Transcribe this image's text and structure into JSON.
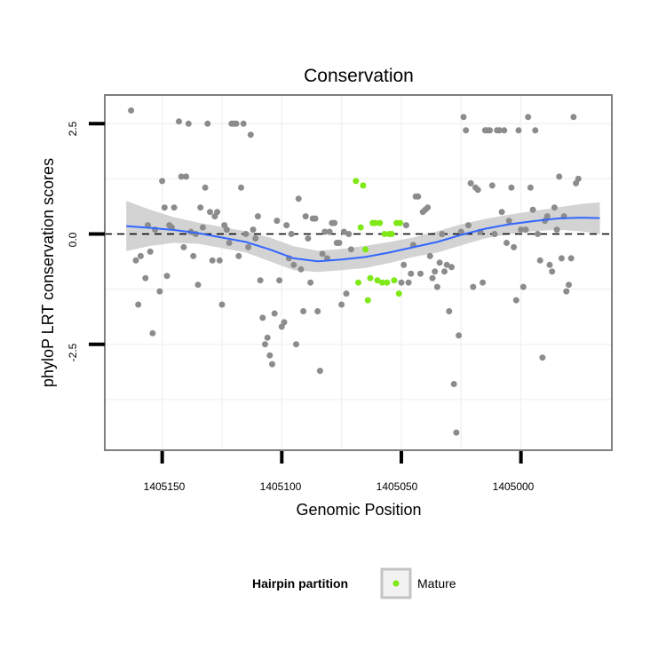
{
  "chart_data": {
    "type": "scatter",
    "title": "Conservation",
    "xlabel": "Genomic Position",
    "ylabel": "phyloP LRT conservation scores",
    "x_reversed": true,
    "xlim": [
      1405174,
      1404962
    ],
    "ylim": [
      -4.9,
      3.15
    ],
    "x_ticks": [
      1405150,
      1405100,
      1405050,
      1405000
    ],
    "x_tick_labels": [
      "1405150",
      "1405100",
      "1405050",
      "1405000"
    ],
    "y_ticks": [
      2.5,
      0.0,
      -2.5
    ],
    "y_tick_labels": [
      "2.5",
      "0.0",
      "-2.5"
    ],
    "hline": {
      "y": 0,
      "style": "dashed"
    },
    "legend": {
      "title": "Hairpin partition",
      "entries": [
        {
          "label": "Mature",
          "color": "#7fe817"
        }
      ],
      "position": "bottom"
    },
    "colors": {
      "other": "#8c8c8c",
      "mature": "#7fe817",
      "smooth": "#3366ff",
      "ribbon": "#c8c8c8"
    },
    "smooth": {
      "x": [
        1405165,
        1405155,
        1405145,
        1405135,
        1405125,
        1405115,
        1405105,
        1405095,
        1405085,
        1405075,
        1405065,
        1405055,
        1405045,
        1405035,
        1405025,
        1405015,
        1405005,
        1404995,
        1404985,
        1404975,
        1404967
      ],
      "y": [
        0.18,
        0.14,
        0.09,
        0.02,
        -0.08,
        -0.18,
        -0.35,
        -0.55,
        -0.62,
        -0.58,
        -0.52,
        -0.42,
        -0.3,
        -0.18,
        -0.02,
        0.12,
        0.22,
        0.29,
        0.35,
        0.37,
        0.36
      ],
      "upper": [
        0.75,
        0.55,
        0.38,
        0.26,
        0.16,
        0.06,
        -0.08,
        -0.28,
        -0.38,
        -0.34,
        -0.27,
        -0.18,
        -0.08,
        0.06,
        0.22,
        0.34,
        0.44,
        0.52,
        0.6,
        0.68,
        0.72
      ],
      "lower": [
        -0.39,
        -0.27,
        -0.2,
        -0.22,
        -0.32,
        -0.42,
        -0.62,
        -0.82,
        -0.86,
        -0.82,
        -0.77,
        -0.66,
        -0.52,
        -0.42,
        -0.26,
        -0.1,
        0.0,
        0.06,
        0.1,
        0.06,
        0.0
      ]
    },
    "series": [
      {
        "name": "Other",
        "points": [
          [
            1405163,
            2.8
          ],
          [
            1405161,
            -0.6
          ],
          [
            1405160,
            -1.6
          ],
          [
            1405159,
            -0.5
          ],
          [
            1405157,
            -1.0
          ],
          [
            1405156,
            0.2
          ],
          [
            1405155,
            -0.4
          ],
          [
            1405154,
            -2.25
          ],
          [
            1405153,
            0.1
          ],
          [
            1405151,
            -1.3
          ],
          [
            1405150,
            1.2
          ],
          [
            1405149,
            0.6
          ],
          [
            1405148,
            -0.95
          ],
          [
            1405147,
            0.2
          ],
          [
            1405146,
            0.15
          ],
          [
            1405145,
            0.6
          ],
          [
            1405143,
            2.55
          ],
          [
            1405142,
            1.3
          ],
          [
            1405141,
            -0.3
          ],
          [
            1405140,
            1.3
          ],
          [
            1405139,
            2.5
          ],
          [
            1405138,
            0.05
          ],
          [
            1405137,
            -0.5
          ],
          [
            1405136,
            0.0
          ],
          [
            1405135,
            -1.15
          ],
          [
            1405134,
            0.6
          ],
          [
            1405133,
            0.15
          ],
          [
            1405132,
            1.05
          ],
          [
            1405131,
            2.5
          ],
          [
            1405130,
            0.5
          ],
          [
            1405129,
            -0.6
          ],
          [
            1405128,
            0.4
          ],
          [
            1405127,
            0.5
          ],
          [
            1405126,
            -0.6
          ],
          [
            1405125,
            -1.6
          ],
          [
            1405124,
            0.2
          ],
          [
            1405123,
            0.1
          ],
          [
            1405122,
            -0.2
          ],
          [
            1405121,
            2.5
          ],
          [
            1405120,
            2.5
          ],
          [
            1405119,
            2.5
          ],
          [
            1405118,
            -0.5
          ],
          [
            1405117,
            1.05
          ],
          [
            1405116,
            2.5
          ],
          [
            1405115,
            0.0
          ],
          [
            1405114,
            -0.3
          ],
          [
            1405113,
            2.25
          ],
          [
            1405112,
            0.1
          ],
          [
            1405111,
            -0.1
          ],
          [
            1405110,
            0.4
          ],
          [
            1405109,
            -1.05
          ],
          [
            1405108,
            -1.9
          ],
          [
            1405107,
            -2.5
          ],
          [
            1405106,
            -2.35
          ],
          [
            1405105,
            -2.75
          ],
          [
            1405104,
            -2.95
          ],
          [
            1405103,
            -1.8
          ],
          [
            1405102,
            0.3
          ],
          [
            1405101,
            -1.05
          ],
          [
            1405100,
            -2.1
          ],
          [
            1405099,
            -2.0
          ],
          [
            1405098,
            0.2
          ],
          [
            1405097,
            -0.55
          ],
          [
            1405096,
            0.0
          ],
          [
            1405095,
            -0.7
          ],
          [
            1405094,
            -2.5
          ],
          [
            1405093,
            0.8
          ],
          [
            1405092,
            -0.8
          ],
          [
            1405091,
            -1.75
          ],
          [
            1405090,
            0.4
          ],
          [
            1405089,
            -0.1
          ],
          [
            1405088,
            -1.1
          ],
          [
            1405087,
            0.35
          ],
          [
            1405086,
            0.35
          ],
          [
            1405085,
            -1.75
          ],
          [
            1405084,
            -3.1
          ],
          [
            1405083,
            -0.45
          ],
          [
            1405082,
            0.05
          ],
          [
            1405081,
            -0.55
          ],
          [
            1405080,
            0.05
          ],
          [
            1405079,
            0.25
          ],
          [
            1405078,
            0.25
          ],
          [
            1405077,
            -0.2
          ],
          [
            1405076,
            -0.2
          ],
          [
            1405075,
            -1.6
          ],
          [
            1405074,
            0.05
          ],
          [
            1405073,
            -1.35
          ],
          [
            1405072,
            0.0
          ],
          [
            1405071,
            -0.35
          ],
          [
            1405050,
            -1.1
          ],
          [
            1405049,
            -0.7
          ],
          [
            1405048,
            0.2
          ],
          [
            1405047,
            -1.1
          ],
          [
            1405046,
            -0.9
          ],
          [
            1405045,
            -0.25
          ],
          [
            1405044,
            0.85
          ],
          [
            1405043,
            0.85
          ],
          [
            1405042,
            -0.9
          ],
          [
            1405041,
            0.5
          ],
          [
            1405040,
            0.55
          ],
          [
            1405039,
            0.6
          ],
          [
            1405038,
            -0.5
          ],
          [
            1405037,
            -1.0
          ],
          [
            1405036,
            -0.85
          ],
          [
            1405035,
            -1.2
          ],
          [
            1405034,
            -0.65
          ],
          [
            1405033,
            0.0
          ],
          [
            1405032,
            -0.85
          ],
          [
            1405031,
            -0.7
          ],
          [
            1405030,
            -1.75
          ],
          [
            1405029,
            -0.75
          ],
          [
            1405028,
            -3.4
          ],
          [
            1405027,
            -4.5
          ],
          [
            1405026,
            -2.3
          ],
          [
            1405025,
            0.05
          ],
          [
            1405024,
            2.65
          ],
          [
            1405023,
            2.35
          ],
          [
            1405022,
            0.2
          ],
          [
            1405021,
            1.15
          ],
          [
            1405020,
            -1.2
          ],
          [
            1405019,
            1.05
          ],
          [
            1405018,
            1.0
          ],
          [
            1405017,
            0.05
          ],
          [
            1405016,
            -1.1
          ],
          [
            1405015,
            2.35
          ],
          [
            1405014,
            2.35
          ],
          [
            1405013,
            2.35
          ],
          [
            1405012,
            1.1
          ],
          [
            1405011,
            0.0
          ],
          [
            1405010,
            2.35
          ],
          [
            1405009,
            2.35
          ],
          [
            1405008,
            0.5
          ],
          [
            1405007,
            2.35
          ],
          [
            1405006,
            -0.2
          ],
          [
            1405005,
            0.3
          ],
          [
            1405004,
            1.05
          ],
          [
            1405003,
            -0.3
          ],
          [
            1405002,
            -1.5
          ],
          [
            1405001,
            2.35
          ],
          [
            1405000,
            0.1
          ],
          [
            1404999,
            -1.2
          ],
          [
            1404998,
            0.1
          ],
          [
            1404997,
            2.65
          ],
          [
            1404996,
            1.05
          ],
          [
            1404995,
            0.55
          ],
          [
            1404994,
            2.35
          ],
          [
            1404993,
            0.0
          ],
          [
            1404992,
            -0.6
          ],
          [
            1404991,
            -2.8
          ],
          [
            1404990,
            0.3
          ],
          [
            1404989,
            0.4
          ],
          [
            1404988,
            -0.7
          ],
          [
            1404987,
            -0.85
          ],
          [
            1404986,
            0.6
          ],
          [
            1404985,
            0.1
          ],
          [
            1404984,
            1.3
          ],
          [
            1404983,
            -0.55
          ],
          [
            1404982,
            0.4
          ],
          [
            1404981,
            -1.3
          ],
          [
            1404980,
            -1.15
          ],
          [
            1404979,
            -0.55
          ],
          [
            1404978,
            2.65
          ],
          [
            1404977,
            1.15
          ],
          [
            1404976,
            1.25
          ]
        ]
      },
      {
        "name": "Mature",
        "points": [
          [
            1405069,
            1.2
          ],
          [
            1405068,
            -1.1
          ],
          [
            1405067,
            0.15
          ],
          [
            1405066,
            1.1
          ],
          [
            1405065,
            -0.35
          ],
          [
            1405064,
            -1.5
          ],
          [
            1405063,
            -1.0
          ],
          [
            1405062,
            0.25
          ],
          [
            1405061,
            0.25
          ],
          [
            1405060,
            -1.05
          ],
          [
            1405059,
            0.25
          ],
          [
            1405058,
            -1.1
          ],
          [
            1405057,
            0.0
          ],
          [
            1405056,
            -1.1
          ],
          [
            1405055,
            0.0
          ],
          [
            1405054,
            0.0
          ],
          [
            1405053,
            -1.05
          ],
          [
            1405052,
            0.25
          ],
          [
            1405051,
            -1.35
          ],
          [
            1405050.5,
            0.25
          ]
        ]
      }
    ]
  }
}
